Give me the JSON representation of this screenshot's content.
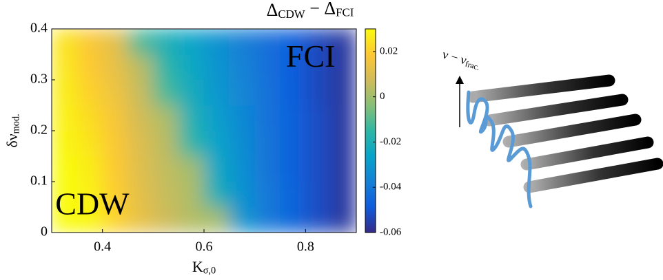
{
  "chart_data": {
    "type": "heatmap",
    "title": [
      {
        "text": "Δ"
      },
      {
        "text": "CDW",
        "sub": true
      },
      {
        "text": " − Δ"
      },
      {
        "text": "FCI",
        "sub": true
      }
    ],
    "x_label": [
      {
        "text": "K"
      },
      {
        "text": "σ,0",
        "sub": true
      }
    ],
    "y_label": [
      {
        "text": "δν"
      },
      {
        "text": "mod.",
        "sub": true
      }
    ],
    "annotations": [
      {
        "text": "FCI",
        "x": 0.81,
        "y": 0.34
      },
      {
        "text": "CDW",
        "x": 0.38,
        "y": 0.05
      }
    ],
    "x": [
      0.325,
      0.375,
      0.425,
      0.475,
      0.525,
      0.575,
      0.625,
      0.675,
      0.725,
      0.775,
      0.825,
      0.875
    ],
    "y": [
      0.025,
      0.075,
      0.125,
      0.175,
      0.225,
      0.275,
      0.325,
      0.375
    ],
    "values": [
      [
        0.03,
        0.029,
        0.021,
        0.013,
        0.007,
        0.003,
        0.001,
        -0.03,
        -0.04,
        -0.046,
        -0.052,
        -0.057
      ],
      [
        0.03,
        0.028,
        0.02,
        0.012,
        0.006,
        0.002,
        -0.02,
        -0.032,
        -0.04,
        -0.046,
        -0.052,
        -0.057
      ],
      [
        0.03,
        0.027,
        0.019,
        0.011,
        0.005,
        0.001,
        -0.024,
        -0.033,
        -0.041,
        -0.047,
        -0.052,
        -0.057
      ],
      [
        0.029,
        0.025,
        0.018,
        0.01,
        0.004,
        -0.016,
        -0.026,
        -0.034,
        -0.041,
        -0.047,
        -0.052,
        -0.057
      ],
      [
        0.028,
        0.023,
        0.017,
        0.008,
        0.002,
        -0.019,
        -0.028,
        -0.035,
        -0.042,
        -0.047,
        -0.052,
        -0.057
      ],
      [
        0.027,
        0.021,
        0.015,
        0.006,
        -0.012,
        -0.022,
        -0.03,
        -0.036,
        -0.042,
        -0.048,
        -0.053,
        -0.057
      ],
      [
        0.026,
        0.019,
        0.013,
        0.004,
        -0.016,
        -0.024,
        -0.031,
        -0.037,
        -0.043,
        -0.048,
        -0.053,
        -0.057
      ],
      [
        0.025,
        0.018,
        0.012,
        -0.012,
        -0.02,
        -0.026,
        -0.032,
        -0.038,
        -0.043,
        -0.048,
        -0.053,
        -0.057
      ]
    ],
    "xlim": [
      0.3,
      0.9
    ],
    "xticks": [
      0.4,
      0.6,
      0.8
    ],
    "ylim": [
      0,
      0.4
    ],
    "yticks": [
      0,
      0.1,
      0.2,
      0.3,
      0.4
    ],
    "clim": [
      -0.06,
      0.03
    ],
    "cticks": [
      0.02,
      0,
      -0.02,
      -0.04,
      -0.06
    ],
    "colorscale": [
      "#352a87",
      "#0f5cdd",
      "#1481d6",
      "#06a4ca",
      "#2eb7a4",
      "#87bf77",
      "#d1bb59",
      "#fec832",
      "#f9fb0e"
    ]
  },
  "inset": {
    "label": [
      {
        "text": "ν − ν"
      },
      {
        "text": "frac.",
        "sub": true
      }
    ]
  }
}
